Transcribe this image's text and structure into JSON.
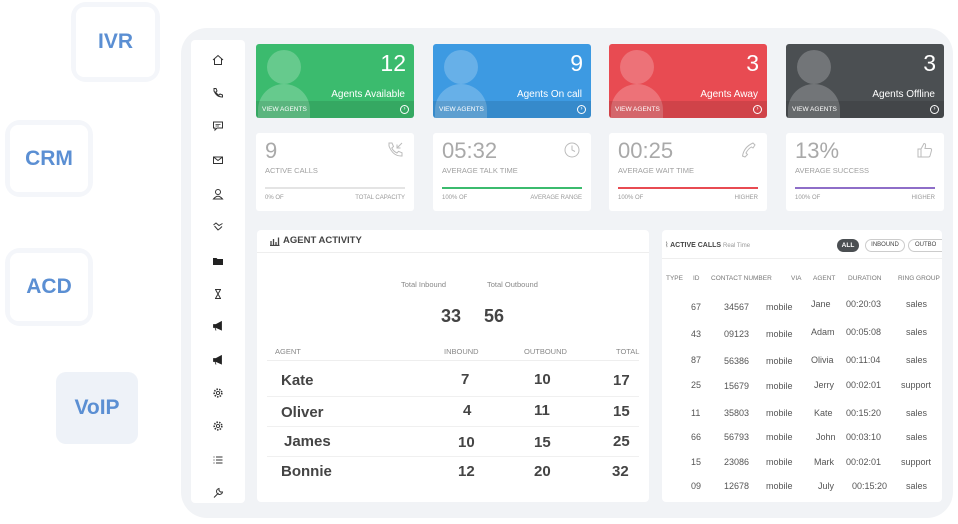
{
  "tags": {
    "ivr": "IVR",
    "crm": "CRM",
    "acd": "ACD",
    "voip": "VoIP"
  },
  "colors": {
    "green": "#3bbb6e",
    "blue": "#3d9ae2",
    "red": "#e84b52",
    "dark": "#4b4f52",
    "accent": "#5b8fd3"
  },
  "nav_icons": [
    "home-icon",
    "phone-icon",
    "chat-icon",
    "mail-icon",
    "contacts-icon",
    "handshake-icon",
    "folder-icon",
    "hourglass-icon",
    "megaphone-icon",
    "megaphone-icon",
    "gear-icon",
    "gear-icon",
    "list-icon",
    "wrench-icon"
  ],
  "cards": [
    {
      "value": "12",
      "label": "Agents Available",
      "link": "VIEW AGENTS",
      "color": "#3bbb6e"
    },
    {
      "value": "9",
      "label": "Agents On call",
      "link": "VIEW AGENTS",
      "color": "#3d9ae2"
    },
    {
      "value": "3",
      "label": "Agents Away",
      "link": "VIEW AGENTS",
      "color": "#e84b52"
    },
    {
      "value": "3",
      "label": "Agents Offline",
      "link": "VIEW AGENTS",
      "color": "#4b4f52"
    }
  ],
  "stats": [
    {
      "value": "9",
      "caption": "ACTIVE CALLS",
      "left": "0% OF",
      "right": "TOTAL CAPACITY",
      "bar_color": "#e4e4e4",
      "fill": 0,
      "icon": "incoming-call-icon"
    },
    {
      "value": "05:32",
      "caption": "AVERAGE TALK TIME",
      "left": "100% OF",
      "right": "AVERAGE RANGE",
      "bar_color": "#3bbb6e",
      "fill": 1,
      "icon": "clock-icon"
    },
    {
      "value": "00:25",
      "caption": "AVERAGE WAIT TIME",
      "left": "100% OF",
      "right": "HIGHER",
      "bar_color": "#e84b52",
      "fill": 1,
      "icon": "phone-icon"
    },
    {
      "value": "13%",
      "caption": "AVERAGE SUCCESS",
      "left": "100% OF",
      "right": "HIGHER",
      "bar_color": "#8e6ec8",
      "fill": 1,
      "icon": "thumbs-up-icon"
    }
  ],
  "agent_activity": {
    "title": "AGENT ACTIVITY",
    "total_inbound_label": "Total Inbound",
    "total_outbound_label": "Total Outbound",
    "total_inbound": "33",
    "total_outbound": "56",
    "headers": [
      "AGENT",
      "INBOUND",
      "OUTBOUND",
      "TOTAL"
    ],
    "rows": [
      [
        "Kate",
        "7",
        "10",
        "17"
      ],
      [
        "Oliver",
        "4",
        "11",
        "15"
      ],
      [
        "James",
        "10",
        "15",
        "25"
      ],
      [
        "Bonnie",
        "12",
        "20",
        "32"
      ]
    ]
  },
  "active_calls": {
    "title": "ACTIVE CALLS",
    "subtitle": "Real Time",
    "filters": [
      "ALL",
      "INBOUND",
      "OUTBO"
    ],
    "headers": [
      "TYPE",
      "ID",
      "CONTACT NUMBER",
      "VIA",
      "AGENT",
      "DURATION",
      "RING GROUP"
    ],
    "rows": [
      [
        "67",
        "34567",
        "mobile",
        "Jane",
        "00:20:03",
        "sales"
      ],
      [
        "43",
        "09123",
        "mobile",
        "Adam",
        "00:05:08",
        "sales"
      ],
      [
        "87",
        "56386",
        "mobile",
        "Olivia",
        "00:11:04",
        "sales"
      ],
      [
        "25",
        "15679",
        "mobile",
        "Jerry",
        "00:02:01",
        "support"
      ],
      [
        "11",
        "35803",
        "mobile",
        "Kate",
        "00:15:20",
        "sales"
      ],
      [
        "66",
        "56793",
        "mobile",
        "John",
        "00:03:10",
        "sales"
      ],
      [
        "15",
        "23086",
        "mobile",
        "Mark",
        "00:02:01",
        "support"
      ],
      [
        "09",
        "12678",
        "mobile",
        "July",
        "00:15:20",
        "sales"
      ]
    ]
  }
}
